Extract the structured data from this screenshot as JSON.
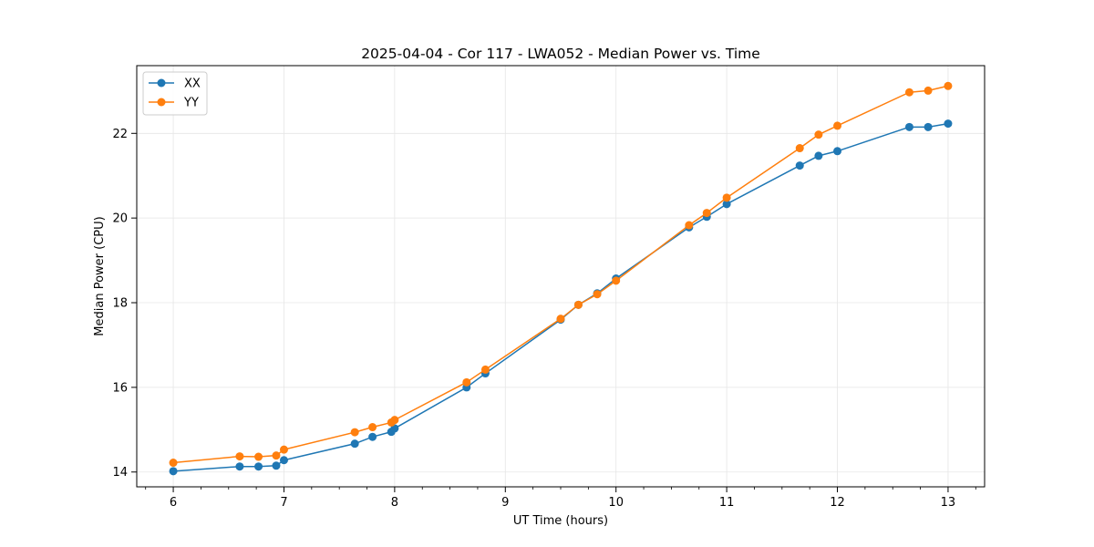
{
  "chart_data": {
    "type": "line",
    "title": "2025-04-04 - Cor 117 - LWA052 - Median Power vs. Time",
    "xlabel": "UT Time (hours)",
    "ylabel": "Median Power (CPU)",
    "xlim": [
      5.67,
      13.33
    ],
    "ylim": [
      13.65,
      23.6
    ],
    "xticks": [
      6,
      7,
      8,
      9,
      10,
      11,
      12,
      13
    ],
    "xtick_labels": [
      "6",
      "7",
      "8",
      "9",
      "10",
      "11",
      "12",
      "13"
    ],
    "xminor_step": 0.25,
    "yticks": [
      14,
      16,
      18,
      20,
      22
    ],
    "ytick_labels": [
      "14",
      "16",
      "18",
      "20",
      "22"
    ],
    "grid": true,
    "legend_position": "upper-left",
    "series": [
      {
        "name": "XX",
        "color": "#1f77b4",
        "x": [
          6.0,
          6.6,
          6.77,
          6.93,
          7.0,
          7.64,
          7.8,
          7.97,
          8.0,
          8.65,
          8.82,
          9.5,
          9.66,
          9.83,
          10.0,
          10.66,
          10.82,
          11.0,
          11.66,
          11.83,
          12.0,
          12.65,
          12.82,
          13.0
        ],
        "values": [
          14.02,
          14.13,
          14.13,
          14.15,
          14.28,
          14.67,
          14.83,
          14.95,
          15.03,
          16.0,
          16.33,
          17.6,
          17.95,
          18.22,
          18.57,
          19.78,
          20.03,
          20.33,
          21.24,
          21.47,
          21.58,
          22.15,
          22.15,
          22.23
        ]
      },
      {
        "name": "YY",
        "color": "#ff7f0e",
        "x": [
          6.0,
          6.6,
          6.77,
          6.93,
          7.0,
          7.64,
          7.8,
          7.97,
          8.0,
          8.65,
          8.82,
          9.5,
          9.66,
          9.83,
          10.0,
          10.66,
          10.82,
          11.0,
          11.66,
          11.83,
          12.0,
          12.65,
          12.82,
          13.0
        ],
        "values": [
          14.22,
          14.37,
          14.36,
          14.39,
          14.53,
          14.94,
          15.06,
          15.17,
          15.23,
          16.12,
          16.42,
          17.62,
          17.95,
          18.2,
          18.52,
          19.83,
          20.12,
          20.48,
          21.65,
          21.97,
          22.18,
          22.97,
          23.01,
          23.12
        ]
      }
    ]
  }
}
